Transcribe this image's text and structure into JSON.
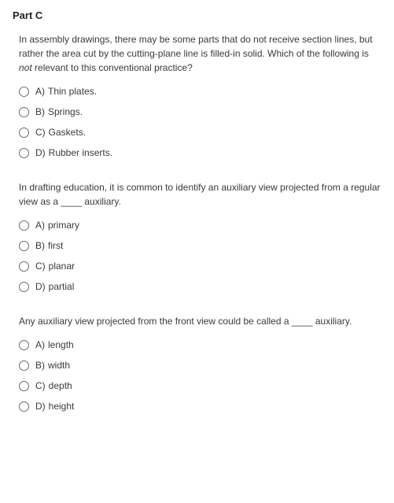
{
  "part_title": "Part C",
  "questions": [
    {
      "text_pre": "In assembly drawings, there may be some parts that do not receive section lines, but rather the area cut by the cutting-plane line is filled-in solid. Which of the following is ",
      "text_emph": "not",
      "text_post": " relevant to this conventional practice?",
      "options": [
        {
          "letter": "A)",
          "label": "Thin plates."
        },
        {
          "letter": "B)",
          "label": "Springs."
        },
        {
          "letter": "C)",
          "label": "Gaskets."
        },
        {
          "letter": "D)",
          "label": "Rubber inserts."
        }
      ]
    },
    {
      "text_pre": "In drafting education, it is common to identify an auxiliary view projected from a regular view as a ____ auxiliary.",
      "text_emph": "",
      "text_post": "",
      "options": [
        {
          "letter": "A)",
          "label": "primary"
        },
        {
          "letter": "B)",
          "label": "first"
        },
        {
          "letter": "C)",
          "label": "planar"
        },
        {
          "letter": "D)",
          "label": "partial"
        }
      ]
    },
    {
      "text_pre": "Any auxiliary view projected from the front view could be called a ____ auxiliary.",
      "text_emph": "",
      "text_post": "",
      "options": [
        {
          "letter": "A)",
          "label": "length"
        },
        {
          "letter": "B)",
          "label": "width"
        },
        {
          "letter": "C)",
          "label": "depth"
        },
        {
          "letter": "D)",
          "label": "height"
        }
      ]
    }
  ],
  "colors": {
    "background": "#ffffff",
    "text": "#3a3a3a",
    "title": "#212121",
    "radio_border": "#6b6b6b"
  },
  "typography": {
    "title_fontsize": 13,
    "body_fontsize": 12,
    "font_family": "Arial"
  }
}
